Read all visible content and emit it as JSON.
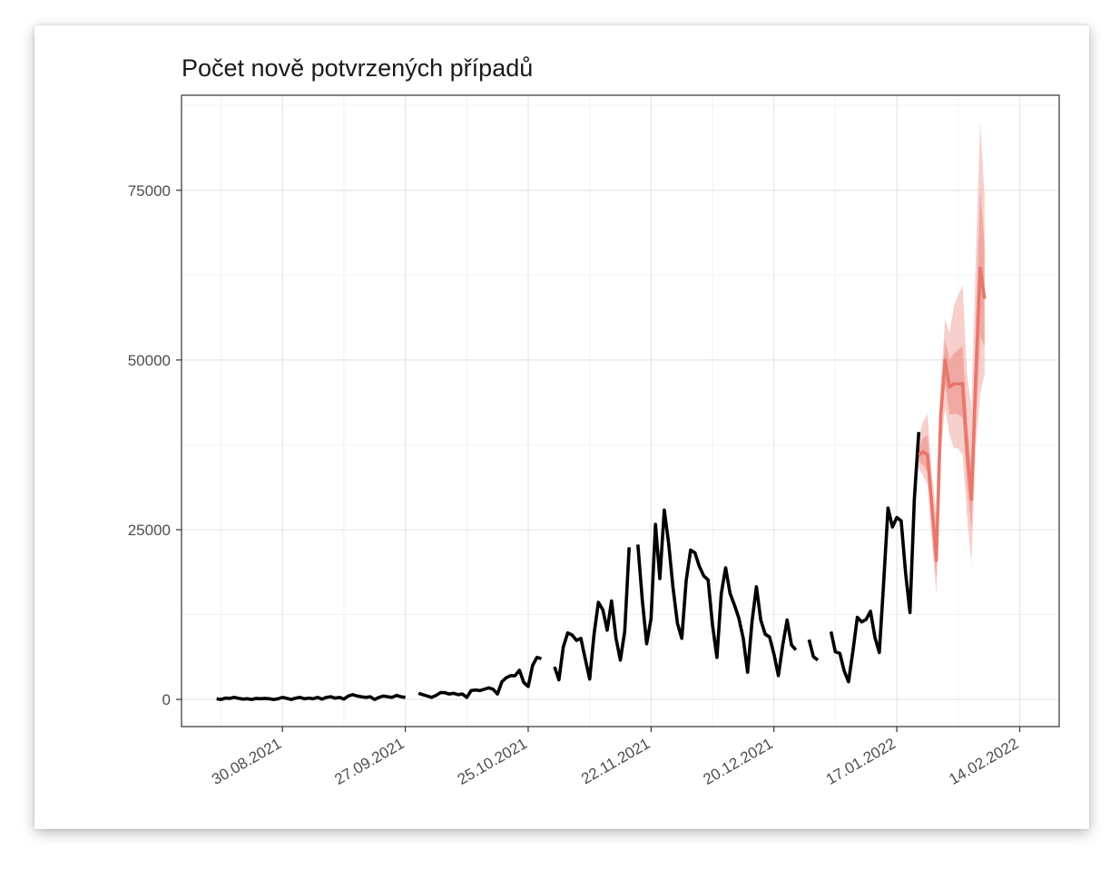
{
  "chart_data": {
    "type": "line",
    "title": "Počet nově potvrzených případů",
    "xlabel": "",
    "ylabel": "",
    "ylim": [
      -4000,
      89000
    ],
    "xlim": [
      "2021-08-07",
      "2022-02-23"
    ],
    "y_ticks": [
      0,
      25000,
      50000,
      75000
    ],
    "y_tick_labels": [
      "0",
      "25000",
      "50000",
      "75000"
    ],
    "x_ticks": [
      "2021-08-30",
      "2021-09-27",
      "2021-10-25",
      "2021-11-22",
      "2021-12-20",
      "2022-01-17",
      "2022-02-14"
    ],
    "x_tick_labels": [
      "30.08.2021",
      "27.09.2021",
      "25.10.2021",
      "22.11.2021",
      "20.12.2021",
      "17.01.2022",
      "14.02.2022"
    ],
    "grid": true,
    "colors": {
      "observed": "#000000",
      "forecast": "#e8776c",
      "band_outer": "#f2b6b0",
      "band_inner": "#ec9890"
    },
    "series": [
      {
        "role": "observed",
        "segments": [
          [
            [
              "2021-08-15",
              100
            ],
            [
              "2021-08-16",
              0
            ],
            [
              "2021-08-17",
              200
            ],
            [
              "2021-08-18",
              150
            ],
            [
              "2021-08-19",
              300
            ],
            [
              "2021-08-20",
              150
            ],
            [
              "2021-08-21",
              50
            ],
            [
              "2021-08-22",
              100
            ],
            [
              "2021-08-23",
              0
            ],
            [
              "2021-08-24",
              150
            ],
            [
              "2021-08-25",
              100
            ],
            [
              "2021-08-26",
              150
            ],
            [
              "2021-08-27",
              100
            ],
            [
              "2021-08-28",
              0
            ],
            [
              "2021-08-29",
              100
            ],
            [
              "2021-08-30",
              300
            ],
            [
              "2021-08-31",
              150
            ],
            [
              "2021-09-01",
              0
            ],
            [
              "2021-09-02",
              200
            ],
            [
              "2021-09-03",
              300
            ],
            [
              "2021-09-04",
              100
            ],
            [
              "2021-09-05",
              200
            ],
            [
              "2021-09-06",
              100
            ],
            [
              "2021-09-07",
              300
            ],
            [
              "2021-09-08",
              50
            ],
            [
              "2021-09-09",
              300
            ],
            [
              "2021-09-10",
              400
            ],
            [
              "2021-09-11",
              200
            ],
            [
              "2021-09-12",
              300
            ],
            [
              "2021-09-13",
              50
            ],
            [
              "2021-09-14",
              500
            ],
            [
              "2021-09-15",
              700
            ],
            [
              "2021-09-16",
              500
            ],
            [
              "2021-09-17",
              400
            ],
            [
              "2021-09-18",
              300
            ],
            [
              "2021-09-19",
              400
            ],
            [
              "2021-09-20",
              0
            ],
            [
              "2021-09-21",
              300
            ],
            [
              "2021-09-22",
              500
            ],
            [
              "2021-09-23",
              400
            ],
            [
              "2021-09-24",
              300
            ],
            [
              "2021-09-25",
              600
            ],
            [
              "2021-09-26",
              400
            ],
            [
              "2021-09-27",
              300
            ]
          ],
          [
            [
              "2021-09-30",
              900
            ],
            [
              "2021-10-01",
              700
            ],
            [
              "2021-10-02",
              500
            ],
            [
              "2021-10-03",
              300
            ],
            [
              "2021-10-04",
              600
            ],
            [
              "2021-10-05",
              1000
            ],
            [
              "2021-10-06",
              1000
            ],
            [
              "2021-10-07",
              800
            ],
            [
              "2021-10-08",
              900
            ],
            [
              "2021-10-09",
              700
            ],
            [
              "2021-10-10",
              800
            ],
            [
              "2021-10-11",
              300
            ],
            [
              "2021-10-12",
              1300
            ],
            [
              "2021-10-13",
              1400
            ],
            [
              "2021-10-14",
              1300
            ],
            [
              "2021-10-15",
              1500
            ],
            [
              "2021-10-16",
              1700
            ],
            [
              "2021-10-17",
              1500
            ],
            [
              "2021-10-18",
              800
            ],
            [
              "2021-10-19",
              2600
            ],
            [
              "2021-10-20",
              3200
            ],
            [
              "2021-10-21",
              3500
            ],
            [
              "2021-10-22",
              3500
            ],
            [
              "2021-10-23",
              4300
            ],
            [
              "2021-10-24",
              2500
            ],
            [
              "2021-10-25",
              1900
            ],
            [
              "2021-10-26",
              5000
            ],
            [
              "2021-10-27",
              6200
            ],
            [
              "2021-10-28",
              6000
            ]
          ],
          [
            [
              "2021-10-31",
              4800
            ],
            [
              "2021-11-01",
              2900
            ],
            [
              "2021-11-02",
              7700
            ],
            [
              "2021-11-03",
              9800
            ],
            [
              "2021-11-04",
              9500
            ],
            [
              "2021-11-05",
              8700
            ],
            [
              "2021-11-06",
              9000
            ],
            [
              "2021-11-07",
              6000
            ],
            [
              "2021-11-08",
              3000
            ],
            [
              "2021-11-09",
              9600
            ],
            [
              "2021-11-10",
              14300
            ],
            [
              "2021-11-11",
              13200
            ],
            [
              "2021-11-12",
              10200
            ],
            [
              "2021-11-13",
              14500
            ],
            [
              "2021-11-14",
              9000
            ],
            [
              "2021-11-15",
              5800
            ],
            [
              "2021-11-16",
              10000
            ],
            [
              "2021-11-17",
              22400
            ]
          ],
          [
            [
              "2021-11-19",
              22800
            ],
            [
              "2021-11-20",
              14600
            ],
            [
              "2021-11-21",
              8200
            ],
            [
              "2021-11-22",
              11900
            ],
            [
              "2021-11-23",
              25800
            ],
            [
              "2021-11-24",
              17800
            ],
            [
              "2021-11-25",
              27900
            ],
            [
              "2021-11-26",
              23000
            ],
            [
              "2021-11-27",
              16500
            ],
            [
              "2021-11-28",
              11200
            ],
            [
              "2021-11-29",
              9000
            ],
            [
              "2021-11-30",
              17500
            ],
            [
              "2021-12-01",
              22000
            ],
            [
              "2021-12-02",
              21600
            ],
            [
              "2021-12-03",
              19600
            ],
            [
              "2021-12-04",
              18200
            ],
            [
              "2021-12-05",
              17600
            ],
            [
              "2021-12-06",
              11000
            ],
            [
              "2021-12-07",
              6200
            ],
            [
              "2021-12-08",
              15600
            ],
            [
              "2021-12-09",
              19400
            ],
            [
              "2021-12-10",
              15600
            ],
            [
              "2021-12-11",
              13900
            ],
            [
              "2021-12-12",
              12000
            ],
            [
              "2021-12-13",
              9000
            ],
            [
              "2021-12-14",
              4000
            ],
            [
              "2021-12-15",
              11500
            ],
            [
              "2021-12-16",
              16600
            ],
            [
              "2021-12-17",
              11700
            ],
            [
              "2021-12-18",
              9600
            ],
            [
              "2021-12-19",
              9200
            ],
            [
              "2021-12-20",
              6700
            ],
            [
              "2021-12-21",
              3500
            ],
            [
              "2021-12-22",
              8000
            ],
            [
              "2021-12-23",
              11700
            ],
            [
              "2021-12-24",
              8000
            ],
            [
              "2021-12-25",
              7300
            ]
          ],
          [
            [
              "2021-12-28",
              8800
            ],
            [
              "2021-12-29",
              6300
            ],
            [
              "2021-12-30",
              5800
            ]
          ],
          [
            [
              "2022-01-02",
              10000
            ],
            [
              "2022-01-03",
              7000
            ],
            [
              "2022-01-04",
              6800
            ],
            [
              "2022-01-05",
              4200
            ],
            [
              "2022-01-06",
              2600
            ],
            [
              "2022-01-07",
              7200
            ],
            [
              "2022-01-08",
              12100
            ],
            [
              "2022-01-09",
              11400
            ],
            [
              "2022-01-10",
              11800
            ],
            [
              "2022-01-11",
              13000
            ],
            [
              "2022-01-12",
              9200
            ],
            [
              "2022-01-13",
              6900
            ],
            [
              "2022-01-14",
              17200
            ],
            [
              "2022-01-15",
              28200
            ],
            [
              "2022-01-16",
              25400
            ],
            [
              "2022-01-17",
              26800
            ],
            [
              "2022-01-18",
              26300
            ],
            [
              "2022-01-19",
              18600
            ],
            [
              "2022-01-20",
              12800
            ],
            [
              "2022-01-21",
              29500
            ],
            [
              "2022-01-22",
              39400
            ]
          ]
        ]
      },
      {
        "role": "forecast",
        "points": [
          [
            "2022-01-22",
            36000
          ],
          [
            "2022-01-23",
            36500
          ],
          [
            "2022-01-24",
            36000
          ],
          [
            "2022-01-25",
            28500
          ],
          [
            "2022-01-26",
            20500
          ],
          [
            "2022-01-27",
            42000
          ],
          [
            "2022-01-28",
            50000
          ],
          [
            "2022-01-29",
            46000
          ],
          [
            "2022-01-30",
            46500
          ],
          [
            "2022-01-31",
            46500
          ],
          [
            "2022-02-01",
            46500
          ],
          [
            "2022-02-02",
            36500
          ],
          [
            "2022-02-03",
            29500
          ],
          [
            "2022-02-04",
            47500
          ],
          [
            "2022-02-05",
            63500
          ],
          [
            "2022-02-06",
            59000
          ]
        ],
        "band_outer": [
          [
            38500,
            34000
          ],
          [
            41000,
            33000
          ],
          [
            42000,
            31500
          ],
          [
            33500,
            23000
          ],
          [
            27000,
            15500
          ],
          [
            46500,
            36000
          ],
          [
            56000,
            43000
          ],
          [
            54000,
            39000
          ],
          [
            58000,
            37000
          ],
          [
            59500,
            37000
          ],
          [
            61000,
            36000
          ],
          [
            48000,
            27000
          ],
          [
            43000,
            20000
          ],
          [
            65000,
            37000
          ],
          [
            85000,
            45000
          ],
          [
            74000,
            48000
          ]
        ],
        "band_inner": [
          [
            37000,
            35000
          ],
          [
            38500,
            34500
          ],
          [
            39000,
            33500
          ],
          [
            31000,
            26000
          ],
          [
            23500,
            17500
          ],
          [
            44000,
            39000
          ],
          [
            53000,
            46500
          ],
          [
            50000,
            42000
          ],
          [
            51000,
            42000
          ],
          [
            51500,
            42000
          ],
          [
            52000,
            41500
          ],
          [
            41000,
            31500
          ],
          [
            34000,
            25000
          ],
          [
            55000,
            40500
          ],
          [
            75000,
            53500
          ],
          [
            67000,
            52000
          ]
        ]
      }
    ]
  }
}
